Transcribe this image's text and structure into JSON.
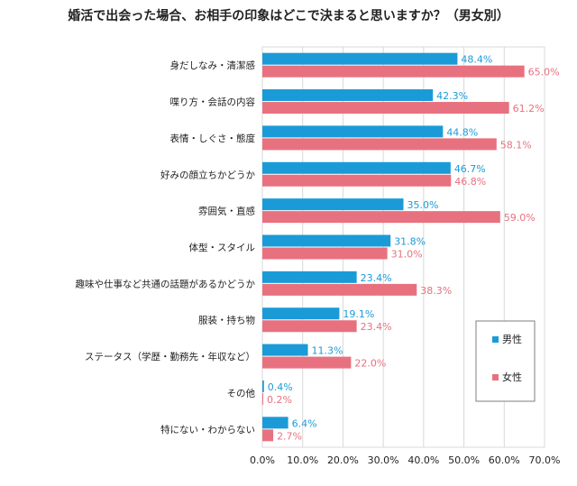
{
  "chart_data": {
    "type": "bar",
    "orientation": "horizontal",
    "title": "婚活で出会った場合、お相手の印象はどこで決まると思いますか？（男女別）",
    "categories": [
      "身だしなみ・清潔感",
      "喋り方・会話の内容",
      "表情・しぐさ・態度",
      "好みの顔立ちかどうか",
      "雰囲気・直感",
      "体型・スタイル",
      "趣味や仕事など共通の話題があるかどうか",
      "服装・持ち物",
      "ステータス（学歴・勤務先・年収など）",
      "その他",
      "特にない・わからない"
    ],
    "series": [
      {
        "name": "男性",
        "color": "#1a9bd7",
        "values": [
          48.4,
          42.3,
          44.8,
          46.7,
          35.0,
          31.8,
          23.4,
          19.1,
          11.3,
          0.4,
          6.4
        ],
        "labels": [
          "48.4%",
          "42.3%",
          "44.8%",
          "46.7%",
          "35.0%",
          "31.8%",
          "23.4%",
          "19.1%",
          "11.3%",
          "0.4%",
          "6.4%"
        ]
      },
      {
        "name": "女性",
        "color": "#e8717f",
        "values": [
          65.0,
          61.2,
          58.1,
          46.8,
          59.0,
          31.0,
          38.3,
          23.4,
          22.0,
          0.2,
          2.7
        ],
        "labels": [
          "65.0%",
          "61.2%",
          "58.1%",
          "46.8%",
          "59.0%",
          "31.0%",
          "38.3%",
          "23.4%",
          "22.0%",
          "0.2%",
          "2.7%"
        ]
      }
    ],
    "xlim": [
      0,
      70
    ],
    "xticks": [
      "0.0%",
      "10.0%",
      "20.0%",
      "30.0%",
      "40.0%",
      "50.0%",
      "60.0%",
      "70.0%"
    ],
    "grid": true,
    "legend_position": "right"
  }
}
